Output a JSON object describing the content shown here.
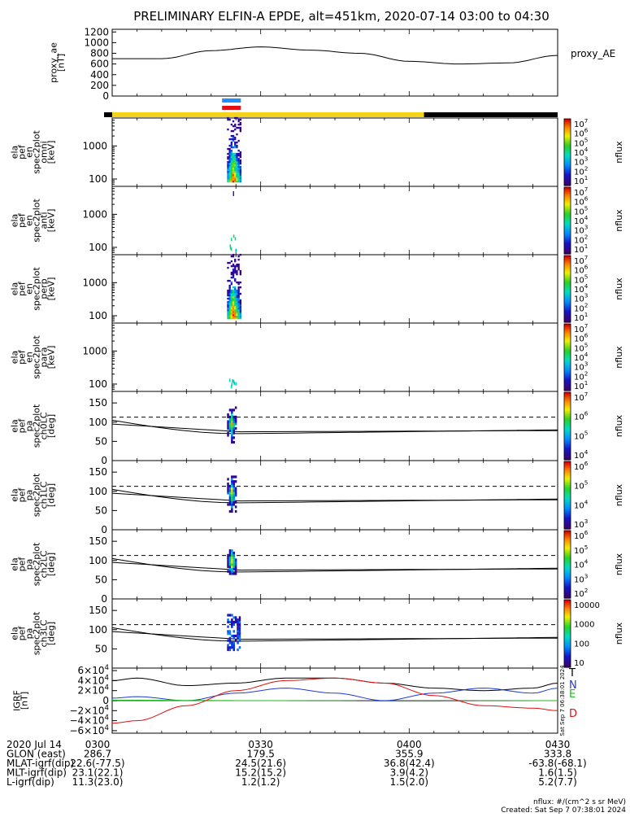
{
  "title": "PRELIMINARY ELFIN-A EPDE, alt=451km, 2020-07-14 03:00 to 04:30",
  "ae_panel": {
    "ylabel": [
      "proxy_ae",
      "[nT]"
    ],
    "yticks": [
      "1200",
      "1000",
      "800",
      "600",
      "400",
      "200",
      "0"
    ],
    "ylim": [
      0,
      1250
    ],
    "legend": "proxy_AE"
  },
  "spec_panels": [
    {
      "ylabel": [
        "ela",
        "pef",
        "en",
        "spec2plot",
        "omni",
        "[keV]"
      ],
      "yticks": [
        "1000",
        "100"
      ],
      "cb_ticks": [
        "10^7",
        "10^6",
        "10^5",
        "10^4",
        "10^3",
        "10^2",
        "10^1"
      ],
      "cb_label": "nflux"
    },
    {
      "ylabel": [
        "ela",
        "pef",
        "en",
        "spec2plot",
        "anti",
        "[keV]"
      ],
      "yticks": [
        "1000",
        "100"
      ],
      "cb_ticks": [
        "10^7",
        "10^6",
        "10^5",
        "10^4",
        "10^3",
        "10^2",
        "10^1"
      ],
      "cb_label": "nflux"
    },
    {
      "ylabel": [
        "ela",
        "pef",
        "en",
        "spec2plot",
        "perp",
        "[keV]"
      ],
      "yticks": [
        "1000",
        "100"
      ],
      "cb_ticks": [
        "10^7",
        "10^6",
        "10^5",
        "10^4",
        "10^3",
        "10^2",
        "10^1"
      ],
      "cb_label": "nflux"
    },
    {
      "ylabel": [
        "ela",
        "pef",
        "en",
        "spec2plot",
        "para",
        "[keV]"
      ],
      "yticks": [
        "1000",
        "100"
      ],
      "cb_ticks": [
        "10^7",
        "10^6",
        "10^5",
        "10^4",
        "10^3",
        "10^2",
        "10^1"
      ],
      "cb_label": "nflux"
    }
  ],
  "pa_panels": [
    {
      "ylabel": [
        "ela",
        "pef",
        "pa",
        "spec2plot",
        "ch0LC",
        "[deg]"
      ],
      "yticks": [
        "150",
        "100",
        "50",
        "0"
      ],
      "cb_ticks": [
        "10^7",
        "10^6",
        "10^5",
        "10^4"
      ],
      "cb_label": "nflux"
    },
    {
      "ylabel": [
        "ela",
        "pef",
        "pa",
        "spec2plot",
        "ch1LC",
        "[deg]"
      ],
      "yticks": [
        "150",
        "100",
        "50",
        "0"
      ],
      "cb_ticks": [
        "10^6",
        "10^5",
        "10^4",
        "10^3"
      ],
      "cb_label": "nflux"
    },
    {
      "ylabel": [
        "ela",
        "pef",
        "pa",
        "spec2plot",
        "ch2LC",
        "[deg]"
      ],
      "yticks": [
        "150",
        "100",
        "50",
        "0"
      ],
      "cb_ticks": [
        "10^6",
        "10^5",
        "10^4",
        "10^3",
        "10^2"
      ],
      "cb_label": "nflux"
    },
    {
      "ylabel": [
        "ela",
        "pef",
        "pa",
        "spec2plot",
        "ch3LC",
        "[deg]"
      ],
      "yticks": [
        "150",
        "100",
        "50"
      ],
      "cb_ticks": [
        "10000",
        "1000",
        "100",
        "10"
      ],
      "cb_label": "nflux"
    }
  ],
  "igrf_panel": {
    "ylabel": [
      "IGRF",
      "[nT]"
    ],
    "yticks": [
      "6×10^4",
      "4×10^4",
      "2×10^4",
      "0",
      "−2×10^4",
      "−4×10^4",
      "−6×10^4"
    ],
    "legend": [
      {
        "label": "T",
        "color": "#000000"
      },
      {
        "label": "N",
        "color": "#1f3bd6"
      },
      {
        "label": "E",
        "color": "#22bb22"
      },
      {
        "label": "D",
        "color": "#dd1111"
      }
    ],
    "side_stamp": "Sat Sep  7 06:38:01 2024"
  },
  "orbit_labels": {
    "rows": [
      {
        "name": "2020 Jul 14",
        "vals": [
          "0300",
          "0330",
          "0400",
          "0430"
        ]
      },
      {
        "name": "GLON (east)",
        "vals": [
          "286.7",
          "179.5",
          "355.9",
          "333.8"
        ]
      },
      {
        "name": "MLAT-igrf(dip)",
        "vals": [
          "22.6(-77.5)",
          "24.5(21.6)",
          "36.8(42.4)",
          "-63.8(-68.1)"
        ]
      },
      {
        "name": "MLT-igrf(dip)",
        "vals": [
          "23.1(22.1)",
          "15.2(15.2)",
          "3.9(4.2)",
          "1.6(1.5)"
        ]
      },
      {
        "name": "L-igrf(dip)",
        "vals": [
          "11.3(23.0)",
          "1.2(1.2)",
          "1.5(2.0)",
          "5.2(7.7)"
        ]
      }
    ]
  },
  "footer": {
    "units": "nflux: #/(cm^2 s sr MeV)",
    "created": "Created: Sat Sep  7 07:38:01 2024"
  },
  "colors": {
    "sun_bar": "#f5d31a",
    "shadow_bar": "#000000",
    "seg_blue": "#1e90ff",
    "seg_red": "#e21010"
  },
  "chart_data": {
    "type": "line",
    "title": "PRELIMINARY ELFIN-A EPDE, alt=451km, 2020-07-14 03:00 to 04:30",
    "x_range": [
      "03:00",
      "04:30"
    ],
    "series": [
      {
        "name": "proxy_AE",
        "x_min": [
          0,
          10,
          20,
          30,
          40,
          50,
          60,
          70,
          80,
          90
        ],
        "values": [
          700,
          700,
          850,
          920,
          860,
          800,
          650,
          600,
          620,
          760
        ]
      }
    ],
    "igrf_series": [
      {
        "name": "T",
        "x_min": [
          0,
          5,
          15,
          25,
          35,
          45,
          55,
          65,
          75,
          85,
          90
        ],
        "values": [
          40000,
          45000,
          30000,
          35000,
          45000,
          45000,
          35000,
          25000,
          20000,
          25000,
          35000
        ]
      },
      {
        "name": "N",
        "x_min": [
          0,
          5,
          15,
          25,
          35,
          45,
          55,
          65,
          75,
          85,
          90
        ],
        "values": [
          5000,
          8000,
          0,
          15000,
          25000,
          15000,
          0,
          15000,
          25000,
          15000,
          25000
        ]
      },
      {
        "name": "E",
        "x_min": [
          0,
          30,
          60,
          90
        ],
        "values": [
          1000,
          0,
          -1000,
          0
        ]
      },
      {
        "name": "D",
        "x_min": [
          0,
          5,
          15,
          25,
          35,
          45,
          55,
          65,
          75,
          85,
          90
        ],
        "values": [
          -45000,
          -40000,
          -10000,
          20000,
          40000,
          45000,
          35000,
          10000,
          -10000,
          -15000,
          -20000
        ]
      }
    ],
    "energy_axis": {
      "scale": "log",
      "range_keV": [
        60,
        7000
      ]
    },
    "pa_axis": {
      "range_deg": [
        0,
        180
      ]
    }
  }
}
